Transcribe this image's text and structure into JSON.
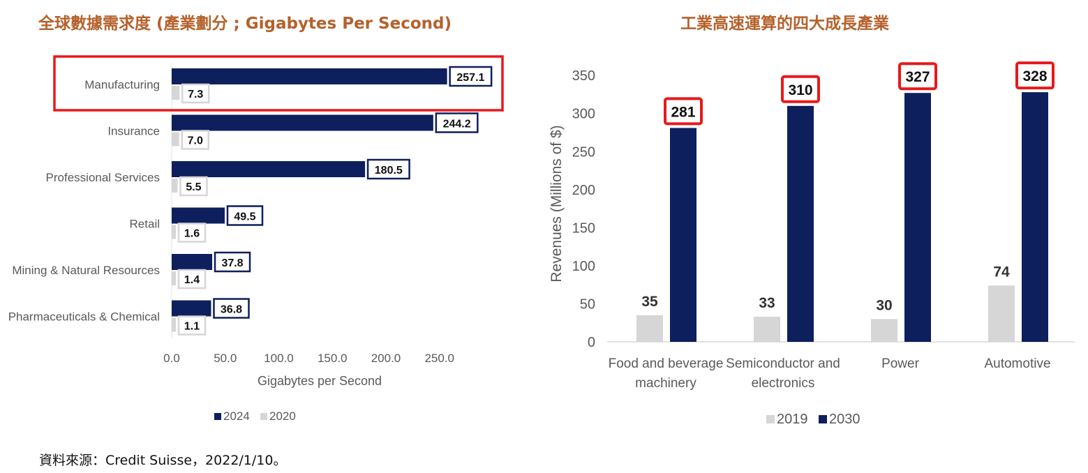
{
  "colors": {
    "title": "#b5612b",
    "navy": "#0d1f5c",
    "light_gray": "#d6d6d6",
    "highlight": "#e8191a",
    "axis_text": "#595959"
  },
  "chart_data": [
    {
      "type": "bar",
      "orientation": "horizontal",
      "title": "全球數據需求度 (產業劃分 ; Gigabytes Per Second)",
      "categories": [
        "Manufacturing",
        "Insurance",
        "Professional Services",
        "Retail",
        "Mining & Natural Resources",
        "Pharmaceuticals & Chemical"
      ],
      "series": [
        {
          "name": "2024",
          "values": [
            257.1,
            244.2,
            180.5,
            49.5,
            37.8,
            36.8
          ],
          "color": "#0d1f5c"
        },
        {
          "name": "2020",
          "values": [
            7.3,
            7.0,
            5.5,
            1.6,
            1.4,
            1.1
          ],
          "color": "#d6d6d6"
        }
      ],
      "value_labels": {
        "2024": [
          "257.1",
          "244.2",
          "180.5",
          "49.5",
          "37.8",
          "36.8"
        ],
        "2020": [
          "7.3",
          "7.0",
          "5.5",
          "1.6",
          "1.4",
          "1.1"
        ]
      },
      "xlabel": "Gigabytes per Second",
      "xlim": [
        0,
        300
      ],
      "xticks": [
        0,
        50,
        100,
        150,
        200,
        250
      ],
      "xtick_labels": [
        "0.0",
        "50.0",
        "100.0",
        "150.0",
        "200.0",
        "250.0"
      ],
      "legend": {
        "placement": "bottom",
        "entries": [
          "2024",
          "2020"
        ]
      },
      "highlighted_category": "Manufacturing",
      "grid": false
    },
    {
      "type": "bar",
      "orientation": "vertical",
      "title": "工業高速運算的四大成長產業",
      "categories": [
        [
          "Food and beverage",
          "machinery"
        ],
        [
          "Semiconductor and",
          "electronics"
        ],
        [
          "Power"
        ],
        [
          "Automotive"
        ]
      ],
      "series": [
        {
          "name": "2019",
          "values": [
            35,
            33,
            30,
            74
          ],
          "color": "#d6d6d6"
        },
        {
          "name": "2030",
          "values": [
            281,
            310,
            327,
            328
          ],
          "color": "#0d1f5c"
        }
      ],
      "value_labels": {
        "2019": [
          "35",
          "33",
          "30",
          "74"
        ],
        "2030": [
          "281",
          "310",
          "327",
          "328"
        ]
      },
      "ylabel": "Revenues (Millions of $)",
      "ylim": [
        0,
        350
      ],
      "yticks": [
        0,
        50,
        100,
        150,
        200,
        250,
        300,
        350
      ],
      "ytick_labels": [
        "0",
        "50",
        "100",
        "150",
        "200",
        "250",
        "300",
        "350"
      ],
      "legend": {
        "placement": "bottom",
        "entries": [
          "2019",
          "2030"
        ]
      },
      "highlighted_series": "2030",
      "grid": false
    }
  ],
  "source_note": "資料來源：Credit Suisse，2022/1/10。"
}
